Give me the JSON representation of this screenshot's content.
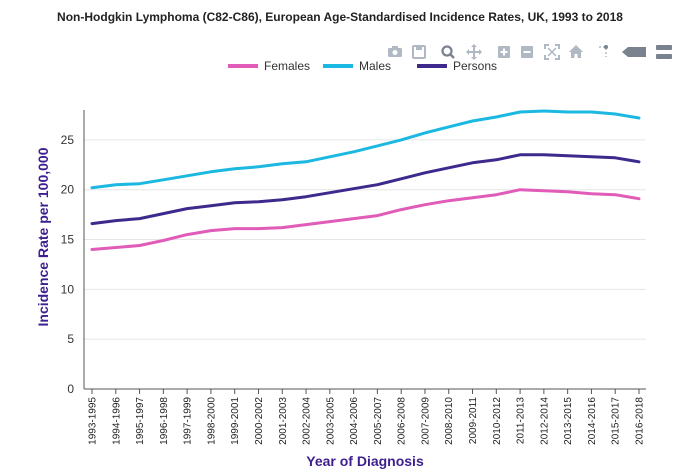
{
  "chart_data": {
    "type": "line",
    "title": "Non-Hodgkin Lymphoma (C82-C86), European Age-Standardised Incidence Rates, UK, 1993 to 2018",
    "xlabel": "Year of Diagnosis",
    "ylabel": "Incidence Rate per 100,000",
    "ylim": [
      0,
      28
    ],
    "yticks": [
      0,
      5,
      10,
      15,
      20,
      25
    ],
    "grid": true,
    "legend_position": "top",
    "categories": [
      "1993-1995",
      "1994-1996",
      "1995-1997",
      "1996-1998",
      "1997-1999",
      "1998-2000",
      "1999-2001",
      "2000-2002",
      "2001-2003",
      "2002-2004",
      "2003-2005",
      "2004-2006",
      "2005-2007",
      "2006-2008",
      "2007-2009",
      "2008-2010",
      "2009-2011",
      "2010-2012",
      "2011-2013",
      "2012-2014",
      "2013-2015",
      "2014-2016",
      "2015-2017",
      "2016-2018"
    ],
    "series": [
      {
        "name": "Females",
        "color": "#e05cb8",
        "values": [
          14.0,
          14.2,
          14.4,
          14.9,
          15.5,
          15.9,
          16.1,
          16.1,
          16.2,
          16.5,
          16.8,
          17.1,
          17.4,
          18.0,
          18.5,
          18.9,
          19.2,
          19.5,
          20.0,
          19.9,
          19.8,
          19.6,
          19.5,
          19.1
        ]
      },
      {
        "name": "Males",
        "color": "#1bb8e2",
        "values": [
          20.2,
          20.5,
          20.6,
          21.0,
          21.4,
          21.8,
          22.1,
          22.3,
          22.6,
          22.8,
          23.3,
          23.8,
          24.4,
          25.0,
          25.7,
          26.3,
          26.9,
          27.3,
          27.8,
          27.9,
          27.8,
          27.8,
          27.6,
          27.2
        ]
      },
      {
        "name": "Persons",
        "color": "#3d2a8c",
        "values": [
          16.6,
          16.9,
          17.1,
          17.6,
          18.1,
          18.4,
          18.7,
          18.8,
          19.0,
          19.3,
          19.7,
          20.1,
          20.5,
          21.1,
          21.7,
          22.2,
          22.7,
          23.0,
          23.5,
          23.5,
          23.4,
          23.3,
          23.2,
          22.8
        ]
      }
    ]
  },
  "colors": {
    "axis_title": "#3d1f8f",
    "grid": "#e6e6e6",
    "axis_line": "#555555",
    "toolbar_icon": "#b0b8c4",
    "toolbar_icon_dark": "#7a8290"
  },
  "toolbar": [
    {
      "name": "camera-icon"
    },
    {
      "name": "save-icon"
    },
    {
      "name": "zoom-icon"
    },
    {
      "name": "pan-icon"
    },
    {
      "name": "zoom-in-icon"
    },
    {
      "name": "zoom-out-icon"
    },
    {
      "name": "autoscale-icon"
    },
    {
      "name": "home-icon"
    },
    {
      "name": "spike-lines-icon"
    },
    {
      "name": "hover-closest-icon"
    },
    {
      "name": "hover-compare-icon"
    }
  ]
}
